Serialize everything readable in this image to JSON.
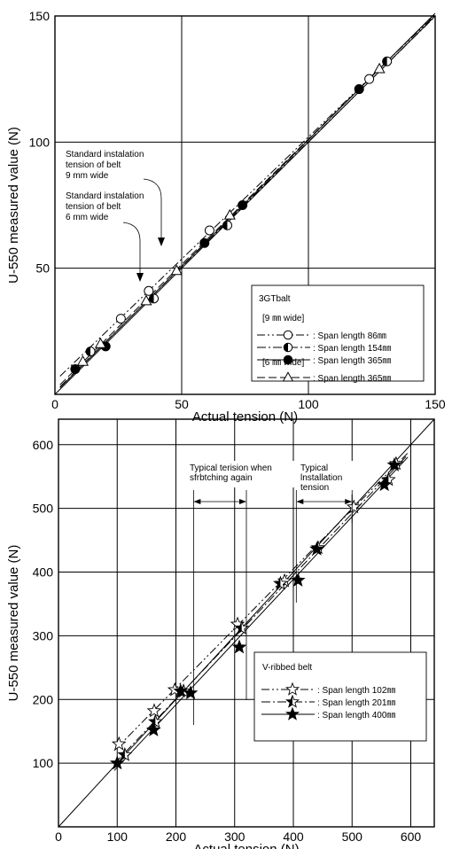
{
  "chart_data": [
    {
      "type": "scatter",
      "xlabel": "Actual tension (N)",
      "ylabel": "U-550 measured value (N)",
      "xlim": [
        0,
        150
      ],
      "ylim": [
        0,
        150
      ],
      "x_ticks": [
        "0",
        "50",
        "100",
        "150"
      ],
      "y_ticks": [
        "50",
        "100",
        "150"
      ],
      "grid": true,
      "reference_line": "y = x",
      "legend": {
        "placement": "lower-right",
        "title": "3GTbalt",
        "groups": [
          {
            "heading": "[9 ㎜ wide]",
            "entries": [
              {
                "label": ": Span length 86㎜",
                "series": 0
              },
              {
                "label": ": Span length 154㎜",
                "series": 1
              },
              {
                "label": ": Span length 365㎜",
                "series": 2
              }
            ]
          },
          {
            "heading": "[6 ㎜ wide]",
            "entries": [
              {
                "label": ": Span length 365㎜",
                "series": 3
              }
            ]
          }
        ]
      },
      "annotations": [
        {
          "lines": [
            "Standard instalation",
            "tension of belt",
            "9 mm wide"
          ]
        },
        {
          "lines": [
            "Standard instalation",
            "tension of belt",
            "6 mm wide"
          ]
        }
      ],
      "series": [
        {
          "marker": "circle-open",
          "line": "dash-dot-dot",
          "x": [
            26,
            37,
            61,
            124
          ],
          "y": [
            30,
            41,
            65,
            125
          ]
        },
        {
          "marker": "circle-half",
          "line": "dash-dot",
          "x": [
            14,
            39,
            68,
            131
          ],
          "y": [
            17,
            38,
            67,
            132
          ]
        },
        {
          "marker": "circle-filled",
          "line": "solid",
          "x": [
            8,
            20,
            59,
            74,
            120
          ],
          "y": [
            10,
            19,
            60,
            75,
            121
          ]
        },
        {
          "marker": "triangle-open",
          "line": "dash",
          "x": [
            11,
            18,
            36,
            48,
            69,
            128
          ],
          "y": [
            13,
            20,
            37,
            49,
            71,
            129
          ]
        }
      ]
    },
    {
      "type": "scatter",
      "xlabel": "Actual tension (N)",
      "ylabel": "U-550 measured value (N)",
      "xlim": [
        0,
        640
      ],
      "ylim": [
        0,
        640
      ],
      "x_ticks": [
        "0",
        "100",
        "200",
        "300",
        "400",
        "500",
        "600"
      ],
      "y_ticks": [
        "100",
        "200",
        "300",
        "400",
        "500",
        "600"
      ],
      "grid": true,
      "reference_line": "y = x",
      "legend": {
        "placement": "lower-right",
        "title": "V-ribbed belt",
        "entries": [
          {
            "label": ": Span length 102㎜",
            "series": 0
          },
          {
            "label": ": Span length 201㎜",
            "series": 1
          },
          {
            "label": ": Span length 400㎜",
            "series": 2
          }
        ]
      },
      "annotations": [
        {
          "lines": [
            "Typical terision when",
            "sfrbtching again"
          ],
          "range": [
            230,
            320
          ]
        },
        {
          "lines": [
            "Typical",
            "lnstallation",
            "tension"
          ],
          "range": [
            405,
            500
          ]
        }
      ],
      "series": [
        {
          "marker": "star-open",
          "line": "dash-dot-dot",
          "x": [
            103,
            163,
            198,
            305,
            385,
            503,
            575
          ],
          "y": [
            130,
            182,
            215,
            318,
            386,
            502,
            570
          ]
        },
        {
          "marker": "star-half",
          "line": "dash-dot",
          "x": [
            113,
            165,
            213,
            312,
            378,
            442,
            562
          ],
          "y": [
            113,
            165,
            213,
            312,
            382,
            438,
            545
          ]
        },
        {
          "marker": "star-filled",
          "line": "solid",
          "x": [
            100,
            162,
            208,
            225,
            308,
            408,
            440,
            555,
            572
          ],
          "y": [
            100,
            152,
            213,
            210,
            282,
            387,
            436,
            537,
            568
          ]
        }
      ]
    }
  ]
}
